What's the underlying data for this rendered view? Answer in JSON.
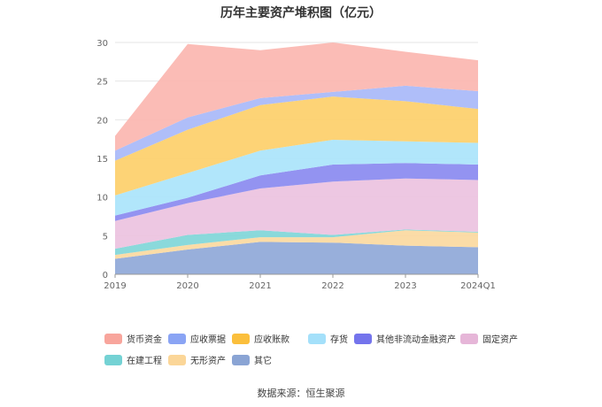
{
  "chart_data": {
    "type": "area",
    "stacked": true,
    "title": "历年主要资产堆积图（亿元）",
    "categories": [
      "2019",
      "2020",
      "2021",
      "2022",
      "2023",
      "2024Q1"
    ],
    "ylim": [
      0,
      30
    ],
    "yticks": [
      "0",
      "5",
      "10",
      "15",
      "20",
      "25",
      "30"
    ],
    "grid": true,
    "legend_position": "bottom",
    "series": [
      {
        "name": "其它",
        "color": "#8fa8d8",
        "values": [
          2.0,
          3.2,
          4.2,
          4.1,
          3.7,
          3.5
        ]
      },
      {
        "name": "无形资产",
        "color": "#fbd9a0",
        "values": [
          0.5,
          0.6,
          0.6,
          0.7,
          2.0,
          1.9
        ]
      },
      {
        "name": "在建工程",
        "color": "#80d6d8",
        "values": [
          0.8,
          1.3,
          0.9,
          0.3,
          0.1,
          0.1
        ]
      },
      {
        "name": "固定资产",
        "color": "#ebc2df",
        "values": [
          3.6,
          4.1,
          5.4,
          6.9,
          6.6,
          6.7
        ]
      },
      {
        "name": "其他非流动金融资产",
        "color": "#8a8af0",
        "values": [
          0.7,
          0.7,
          1.7,
          2.2,
          2.0,
          2.0
        ]
      },
      {
        "name": "存货",
        "color": "#aae4fb",
        "values": [
          2.6,
          3.2,
          3.2,
          3.2,
          2.8,
          2.8
        ]
      },
      {
        "name": "应收账款",
        "color": "#fdcf6a",
        "values": [
          4.5,
          5.6,
          5.9,
          5.6,
          5.2,
          4.4
        ]
      },
      {
        "name": "应收票据",
        "color": "#a8b8f8",
        "values": [
          1.3,
          1.6,
          0.9,
          0.6,
          2.0,
          2.3
        ]
      },
      {
        "name": "货币资金",
        "color": "#fbb6b0",
        "values": [
          1.9,
          9.5,
          6.2,
          6.4,
          4.4,
          4.0
        ]
      }
    ]
  },
  "legend": {
    "items": [
      {
        "name": "货币资金",
        "color": "#f8a59c"
      },
      {
        "name": "应收票据",
        "color": "#8aa4f4"
      },
      {
        "name": "应收账款",
        "color": "#fbbf3c"
      },
      {
        "name": "存货",
        "color": "#a4e0fa"
      },
      {
        "name": "其他非流动金融资产",
        "color": "#7474ec"
      },
      {
        "name": "固定资产",
        "color": "#e6b6d8"
      },
      {
        "name": "在建工程",
        "color": "#74d2d4"
      },
      {
        "name": "无形资产",
        "color": "#fbd698"
      },
      {
        "name": "其它",
        "color": "#8aa4d4"
      }
    ]
  },
  "source": "数据来源：恒生聚源"
}
